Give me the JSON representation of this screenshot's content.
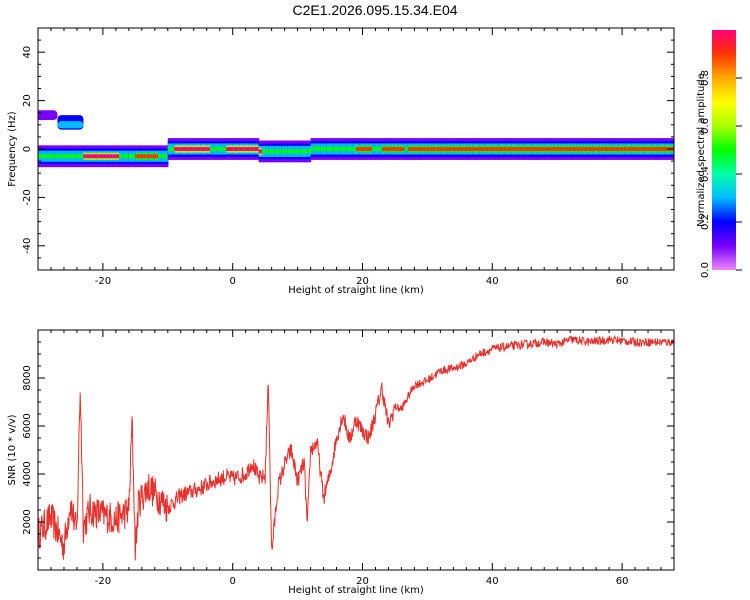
{
  "chart_data": [
    {
      "type": "heatmap",
      "title": "C2E1.2026.095.15.34.E04",
      "xlabel": "Height of straight line (km)",
      "ylabel": "Frequency (Hz)",
      "xlim": [
        -30,
        68
      ],
      "ylim": [
        -50,
        50
      ],
      "x_ticks": [
        -20,
        0,
        20,
        40,
        60
      ],
      "y_ticks": [
        -40,
        -20,
        0,
        20,
        40
      ],
      "colorbar": {
        "label": "Normalized spectral amplitude",
        "range": [
          0,
          1
        ],
        "ticks": [
          "0.0",
          "0.2",
          "0.4",
          "0.6",
          "0.8"
        ],
        "colors": [
          "#ee88ff",
          "#7700ff",
          "#0000ff",
          "#00bbff",
          "#00ffaa",
          "#00ff00",
          "#aaff00",
          "#ffff00",
          "#ffaa00",
          "#ff3300",
          "#ff0077"
        ]
      },
      "ridge": {
        "segments": [
          {
            "x": [
              -30,
              -10
            ],
            "freq": -3
          },
          {
            "x": [
              -10,
              4
            ],
            "freq": 0
          },
          {
            "x": [
              4,
              12
            ],
            "freq": -1
          },
          {
            "x": [
              12,
              68
            ],
            "freq": 0
          }
        ],
        "peak_regions": [
          {
            "x": [
              -23,
              -18
            ],
            "amp": 0.95
          },
          {
            "x": [
              -15,
              -12
            ],
            "amp": 0.9
          },
          {
            "x": [
              -9,
              -4
            ],
            "amp": 0.95
          },
          {
            "x": [
              -1,
              4
            ],
            "amp": 0.95
          },
          {
            "x": [
              19,
              21
            ],
            "amp": 0.9
          },
          {
            "x": [
              23,
              26
            ],
            "amp": 0.9
          },
          {
            "x": [
              27,
              68
            ],
            "amp": 0.9
          }
        ]
      },
      "grid": false
    },
    {
      "type": "line",
      "title": "",
      "xlabel": "Height of straight line (km)",
      "ylabel": "SNR (10 * v/v)",
      "xlim": [
        -30,
        68
      ],
      "ylim": [
        0,
        10000
      ],
      "x_ticks": [
        -20,
        0,
        20,
        40,
        60
      ],
      "y_ticks": [
        2000,
        4000,
        6000,
        8000
      ],
      "series": [
        {
          "color": "#e8302a",
          "x": [
            -30,
            -28,
            -26,
            -25,
            -24,
            -23.5,
            -23,
            -22,
            -20,
            -18,
            -16,
            -15.5,
            -15,
            -14.5,
            -13,
            -10,
            -8,
            -5,
            -3,
            -1,
            0,
            2,
            3,
            4,
            5,
            5.5,
            6,
            7,
            8,
            9,
            10,
            11,
            11.5,
            12,
            13,
            14,
            15,
            16,
            17,
            18,
            19,
            20,
            21,
            22,
            23,
            24,
            25,
            26,
            28,
            30,
            32,
            34,
            36,
            38,
            40,
            42,
            45,
            48,
            50,
            52,
            55,
            58,
            60,
            62,
            65,
            68
          ],
          "y": [
            1500,
            2200,
            1000,
            2800,
            1500,
            7700,
            1800,
            2500,
            2300,
            2100,
            2500,
            6200,
            800,
            2800,
            3500,
            2600,
            3100,
            3400,
            3700,
            3900,
            3800,
            4000,
            4500,
            3800,
            3900,
            8000,
            700,
            3500,
            4400,
            5000,
            3700,
            4500,
            1800,
            5000,
            5300,
            3000,
            4000,
            5500,
            6500,
            5400,
            6300,
            5800,
            5500,
            6500,
            7600,
            6000,
            6800,
            6700,
            7700,
            7900,
            8300,
            8400,
            8600,
            9000,
            9200,
            9300,
            9400,
            9500,
            9400,
            9600,
            9500,
            9600,
            9550,
            9500,
            9500,
            9500
          ]
        }
      ],
      "grid": false
    }
  ]
}
